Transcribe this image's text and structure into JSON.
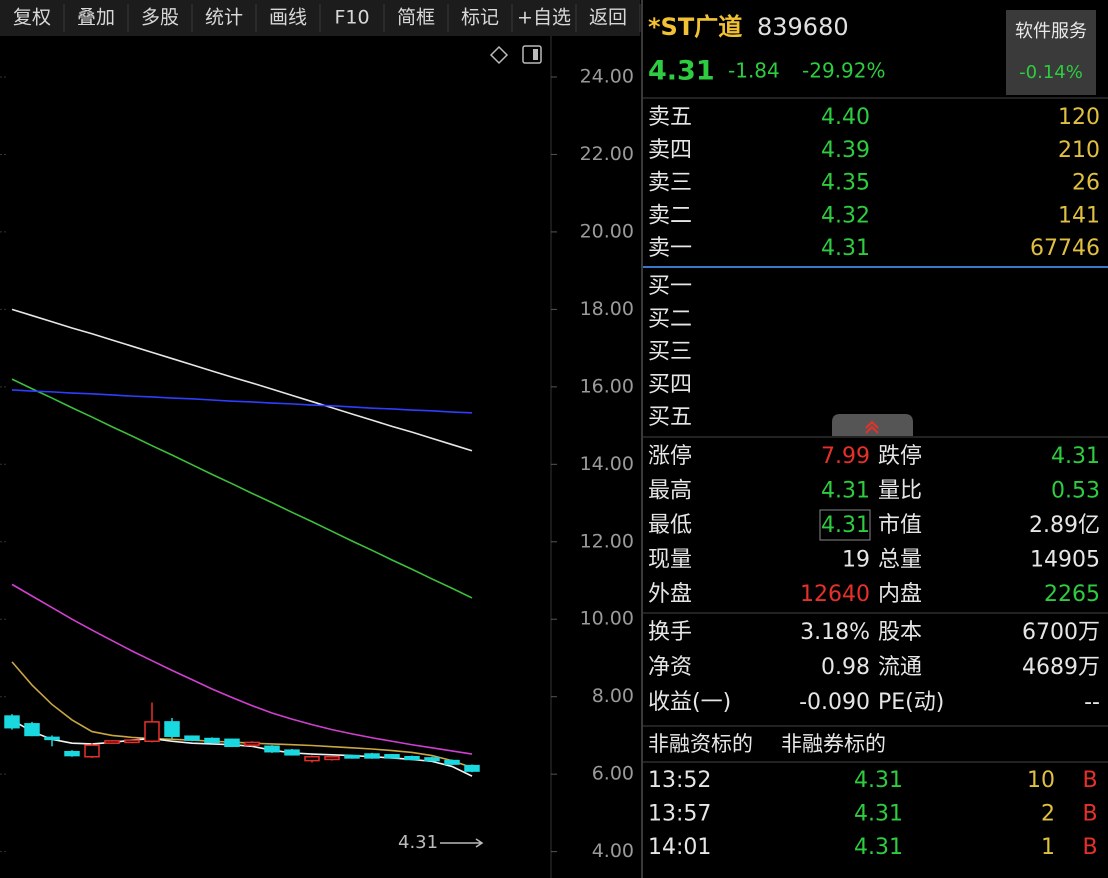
{
  "toolbar": [
    "复权",
    "叠加",
    "多股",
    "统计",
    "画线",
    "F10",
    "简框",
    "标记",
    "+自选",
    "返回"
  ],
  "chart_data": {
    "type": "candlestick",
    "ylim": [
      3.5,
      25
    ],
    "yticks": [
      {
        "value": 24,
        "label": "24.00"
      },
      {
        "value": 22,
        "label": "22.00"
      },
      {
        "value": 20,
        "label": "20.00"
      },
      {
        "value": 18,
        "label": "18.00"
      },
      {
        "value": 16,
        "label": "16.00"
      },
      {
        "value": 14,
        "label": "14.00"
      },
      {
        "value": 12,
        "label": "12.00"
      },
      {
        "value": 10,
        "label": "10.00"
      },
      {
        "value": 8,
        "label": "8.00"
      },
      {
        "value": 6,
        "label": "6.00"
      },
      {
        "value": 4,
        "label": "4.00"
      }
    ],
    "open": [
      7.5,
      7.3,
      6.95,
      6.58,
      6.45,
      6.8,
      6.82,
      6.85,
      7.35,
      6.98,
      6.92,
      6.9,
      6.75,
      6.72,
      6.62,
      6.35,
      6.38,
      6.48,
      6.52,
      6.5,
      6.45,
      6.42,
      6.35,
      6.22
    ],
    "high": [
      7.55,
      7.35,
      7.0,
      6.62,
      6.8,
      6.88,
      6.9,
      7.85,
      7.45,
      7.0,
      6.95,
      6.92,
      6.85,
      6.75,
      6.65,
      6.48,
      6.47,
      6.5,
      6.55,
      6.52,
      6.48,
      6.45,
      6.38,
      6.25
    ],
    "low": [
      7.15,
      6.98,
      6.72,
      6.45,
      6.42,
      6.78,
      6.8,
      6.82,
      6.92,
      6.85,
      6.8,
      6.7,
      6.72,
      6.55,
      6.48,
      6.3,
      6.35,
      6.4,
      6.4,
      6.4,
      6.36,
      6.33,
      6.24,
      6.05
    ],
    "close": [
      7.2,
      7.0,
      6.92,
      6.48,
      6.75,
      6.86,
      6.88,
      7.35,
      6.98,
      6.88,
      6.82,
      6.72,
      6.82,
      6.58,
      6.5,
      6.45,
      6.45,
      6.42,
      6.42,
      6.42,
      6.38,
      6.35,
      6.26,
      6.08
    ],
    "up_color": "#e8302a",
    "down_color": "#19d8e0",
    "series": [
      {
        "color": "#e6e6e6",
        "values": [
          18.0,
          17.84,
          17.68,
          17.52,
          17.37,
          17.21,
          17.05,
          16.89,
          16.73,
          16.57,
          16.41,
          16.25,
          16.1,
          15.94,
          15.78,
          15.62,
          15.46,
          15.3,
          15.14,
          14.98,
          14.83,
          14.67,
          14.51,
          14.35
        ]
      },
      {
        "color": "#3cbf3c",
        "values": [
          16.2,
          15.95,
          15.71,
          15.46,
          15.22,
          14.97,
          14.73,
          14.48,
          14.24,
          13.99,
          13.74,
          13.5,
          13.25,
          13.01,
          12.76,
          12.52,
          12.27,
          12.02,
          11.78,
          11.53,
          11.29,
          11.04,
          10.8,
          10.55
        ]
      },
      {
        "color": "#2f3dff",
        "values": [
          15.92,
          15.89,
          15.87,
          15.84,
          15.82,
          15.79,
          15.76,
          15.74,
          15.71,
          15.69,
          15.66,
          15.63,
          15.61,
          15.58,
          15.56,
          15.53,
          15.51,
          15.48,
          15.45,
          15.43,
          15.4,
          15.38,
          15.35,
          15.33
        ]
      },
      {
        "color": "#d040d0",
        "values": [
          10.9,
          10.6,
          10.3,
          10.0,
          9.72,
          9.45,
          9.18,
          8.93,
          8.68,
          8.44,
          8.2,
          7.98,
          7.77,
          7.58,
          7.42,
          7.28,
          7.15,
          7.04,
          6.94,
          6.85,
          6.76,
          6.68,
          6.6,
          6.52
        ]
      },
      {
        "color": "#c9a642",
        "values": [
          8.9,
          8.3,
          7.8,
          7.4,
          7.1,
          7.0,
          6.95,
          6.92,
          6.9,
          6.88,
          6.85,
          6.83,
          6.8,
          6.78,
          6.76,
          6.74,
          6.71,
          6.68,
          6.65,
          6.61,
          6.56,
          6.48,
          6.35,
          6.17
        ]
      },
      {
        "color": "#f2f2f2",
        "values": [
          7.4,
          7.1,
          6.9,
          6.8,
          6.78,
          6.82,
          6.88,
          6.92,
          6.85,
          6.8,
          6.78,
          6.76,
          6.72,
          6.62,
          6.55,
          6.52,
          6.5,
          6.48,
          6.45,
          6.42,
          6.38,
          6.33,
          6.2,
          5.95
        ]
      }
    ],
    "last_price_label": "4.31"
  },
  "quote": {
    "name": "*ST广道",
    "code": "839680",
    "sector": "软件服务",
    "sector_change": "-0.14%",
    "price": "4.31",
    "change": "-1.84",
    "change_pct": "-29.92%"
  },
  "order_book": {
    "asks": [
      {
        "label": "卖五",
        "price": "4.40",
        "volume": "120"
      },
      {
        "label": "卖四",
        "price": "4.39",
        "volume": "210"
      },
      {
        "label": "卖三",
        "price": "4.35",
        "volume": "26"
      },
      {
        "label": "卖二",
        "price": "4.32",
        "volume": "141"
      },
      {
        "label": "卖一",
        "price": "4.31",
        "volume": "67746"
      }
    ],
    "bids": [
      {
        "label": "买一"
      },
      {
        "label": "买二"
      },
      {
        "label": "买三"
      },
      {
        "label": "买四"
      },
      {
        "label": "买五"
      }
    ]
  },
  "stats": [
    [
      "涨停",
      "7.99",
      "跌停",
      "4.31"
    ],
    [
      "最高",
      "4.31",
      "量比",
      "0.53"
    ],
    [
      "最低",
      "4.31",
      "市值",
      "2.89亿"
    ],
    [
      "现量",
      "19",
      "总量",
      "14905"
    ],
    [
      "外盘",
      "12640",
      "内盘",
      "2265"
    ]
  ],
  "fundamentals": [
    [
      "换手",
      "3.18%",
      "股本",
      "6700万"
    ],
    [
      "净资",
      "0.98",
      "流通",
      "4689万"
    ],
    [
      "收益(一)",
      "-0.090",
      "PE(动)",
      "--"
    ]
  ],
  "margin": [
    "非融资标的",
    "非融券标的"
  ],
  "ticks": [
    [
      "13:52",
      "4.31",
      "10",
      "B"
    ],
    [
      "13:57",
      "4.31",
      "2",
      "B"
    ],
    [
      "14:01",
      "4.31",
      "1",
      "B"
    ]
  ]
}
